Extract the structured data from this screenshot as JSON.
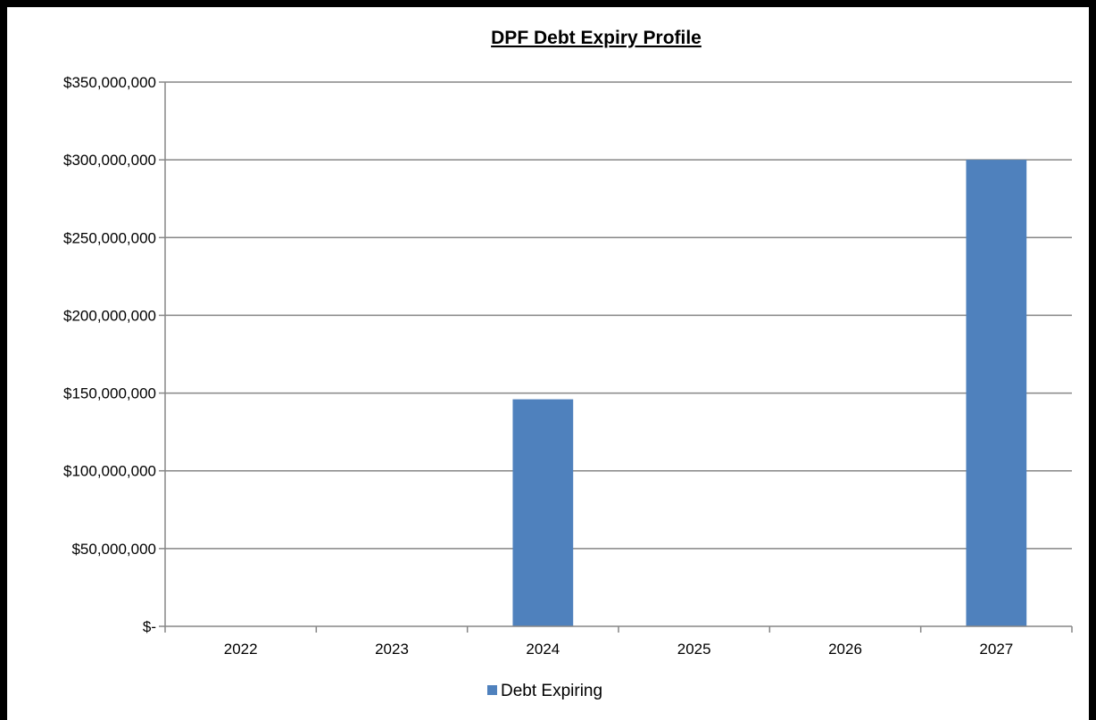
{
  "chart_data": {
    "type": "bar",
    "title": "DPF Debt Expiry Profile",
    "xlabel": "",
    "ylabel": "",
    "categories": [
      "2022",
      "2023",
      "2024",
      "2025",
      "2026",
      "2027"
    ],
    "series": [
      {
        "name": "Debt Expiring",
        "values": [
          0,
          0,
          146000000,
          0,
          0,
          300000000
        ],
        "color": "#4f81bd"
      }
    ],
    "ylim": [
      0,
      350000000
    ],
    "y_ticks": [
      0,
      50000000,
      100000000,
      150000000,
      200000000,
      250000000,
      300000000,
      350000000
    ],
    "y_tick_labels": [
      "$-",
      "$50,000,000",
      "$100,000,000",
      "$150,000,000",
      "$200,000,000",
      "$250,000,000",
      "$300,000,000",
      "$350,000,000"
    ],
    "grid": true,
    "legend_position": "bottom"
  }
}
